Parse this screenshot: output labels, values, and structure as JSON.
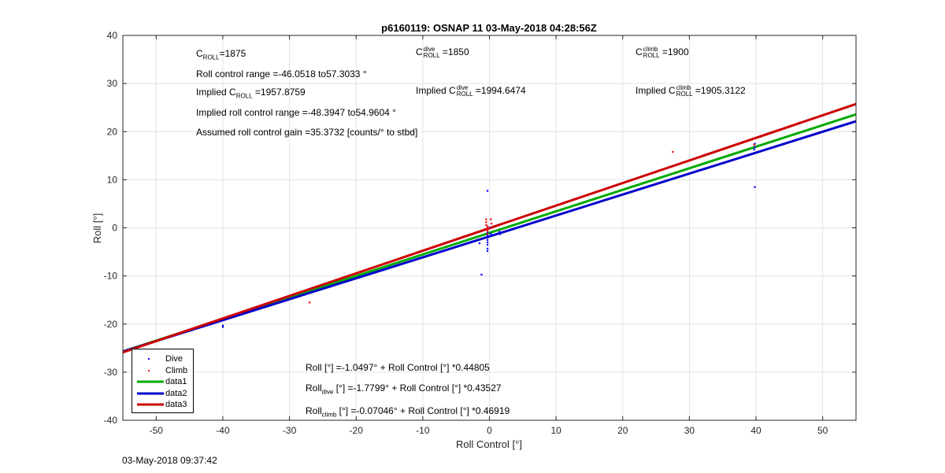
{
  "chart_data": {
    "type": "scatter",
    "title": "p6160119: OSNAP 11 03-May-2018 04:28:56Z",
    "xlabel": "Roll Control [°]",
    "ylabel": "Roll [°]",
    "xlim": [
      -55,
      55
    ],
    "ylim": [
      -40,
      40
    ],
    "xticks": [
      -50,
      -40,
      -30,
      -20,
      -10,
      0,
      10,
      20,
      30,
      40,
      50
    ],
    "yticks": [
      -40,
      -30,
      -20,
      -10,
      0,
      10,
      20,
      30,
      40
    ],
    "grid": true,
    "legend_position": "bottom-left",
    "series": [
      {
        "name": "Dive",
        "kind": "points",
        "color": "#0000ff",
        "x": [
          -40,
          -40,
          -1.5,
          -1.2,
          -0.3,
          -0.3,
          -0.3,
          -0.3,
          -0.3,
          -0.3,
          -0.3,
          -0.3,
          -0.3,
          -0.3,
          -0.3,
          -0.3,
          0.2,
          0.2,
          1.5,
          1.6,
          39.7,
          39.8,
          39.8,
          39.8
        ],
        "y": [
          -20.3,
          -20.6,
          -3.2,
          -9.7,
          7.7,
          0.3,
          -0.5,
          -1.0,
          -1.5,
          -2.0,
          -2.5,
          -3.0,
          -3.5,
          -4.3,
          -4.8,
          -1.9,
          -1.2,
          0.1,
          -0.8,
          -1.3,
          16.3,
          16.8,
          17.5,
          8.5
        ]
      },
      {
        "name": "Climb",
        "kind": "points",
        "color": "#ff0000",
        "x": [
          -27,
          -0.5,
          -0.5,
          -0.5,
          -0.3,
          -0.3,
          -0.3,
          -0.3,
          0.2,
          0.3,
          0.3,
          27.5,
          39.7
        ],
        "y": [
          -15.5,
          1.8,
          1.2,
          0.6,
          0.3,
          -0.2,
          -0.6,
          -1.2,
          1.8,
          0.9,
          0.0,
          15.8,
          17.3
        ]
      },
      {
        "name": "data1",
        "kind": "line",
        "color": "#00aa00",
        "x": [
          -55,
          55
        ],
        "y": [
          -25.69,
          23.59
        ]
      },
      {
        "name": "data2",
        "kind": "line",
        "color": "#0000cc",
        "x": [
          -55,
          55
        ],
        "y": [
          -25.72,
          22.16
        ]
      },
      {
        "name": "data3",
        "kind": "line",
        "color": "#cc0000",
        "x": [
          -55,
          55
        ],
        "y": [
          -25.88,
          25.74
        ]
      }
    ]
  },
  "annotations": {
    "croll_base": "C",
    "croll_sub": "ROLL",
    "croll_value": "=1875",
    "roll_control_range": "Roll control range =-46.0518 to57.3033 °",
    "implied_croll_prefix": "Implied C",
    "implied_croll_sub": "ROLL",
    "implied_croll_value": " =1957.8759",
    "implied_roll_control_range": "Implied roll control range =-48.3947 to54.9604 °",
    "assumed_gain": "Assumed roll control gain =35.3732 [counts/° to stbd]",
    "cdive_base": "C",
    "cdive_sup": "dive",
    "cdive_sub": "ROLL",
    "cdive_value": " =1850",
    "implied_cdive_prefix": "Implied C",
    "implied_cdive_sup": "dive",
    "implied_cdive_sub": "ROLL",
    "implied_cdive_value": " =1994.6474",
    "cclimb_base": "C",
    "cclimb_sup": "climb",
    "cclimb_sub": "ROLL",
    "cclimb_value": " =1900",
    "implied_cclimb_prefix": "Implied C",
    "implied_cclimb_sup": "climb",
    "implied_cclimb_sub": "ROLL",
    "implied_cclimb_value": " =1905.3122",
    "fit_all": "Roll [°] =-1.0497° + Roll Control [°] *0.44805",
    "fit_dive_base": "Roll",
    "fit_dive_sub": "dive",
    "fit_dive_rest": " [°] =-1.7799° + Roll Control [°] *0.43527",
    "fit_climb_base": "Roll",
    "fit_climb_sub": "climb",
    "fit_climb_rest": " [°] =-0.07046° + Roll Control [°] *0.46919"
  },
  "footer": {
    "timestamp": "03-May-2018 09:37:42"
  }
}
